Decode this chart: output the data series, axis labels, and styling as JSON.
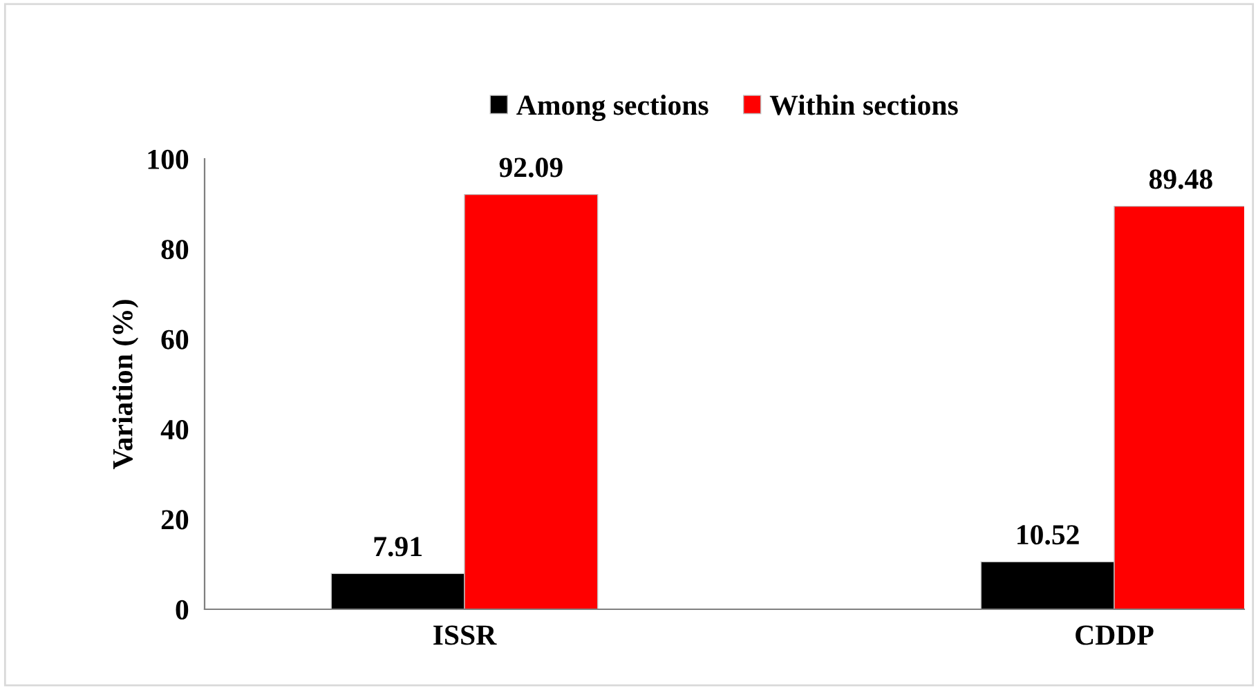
{
  "chart_data": {
    "type": "bar",
    "ylabel": "Variation (%)",
    "categories": [
      "ISSR",
      "CDDP"
    ],
    "series": [
      {
        "name": "Among sections",
        "color": "#000000",
        "values": [
          7.91,
          10.52
        ]
      },
      {
        "name": "Within sections",
        "color": "#ff0000",
        "values": [
          92.09,
          89.48
        ]
      }
    ],
    "ylim": [
      0,
      100
    ],
    "yticks": [
      0,
      20,
      40,
      60,
      80,
      100
    ],
    "grid": false,
    "legend": "top",
    "data_labels": true
  }
}
